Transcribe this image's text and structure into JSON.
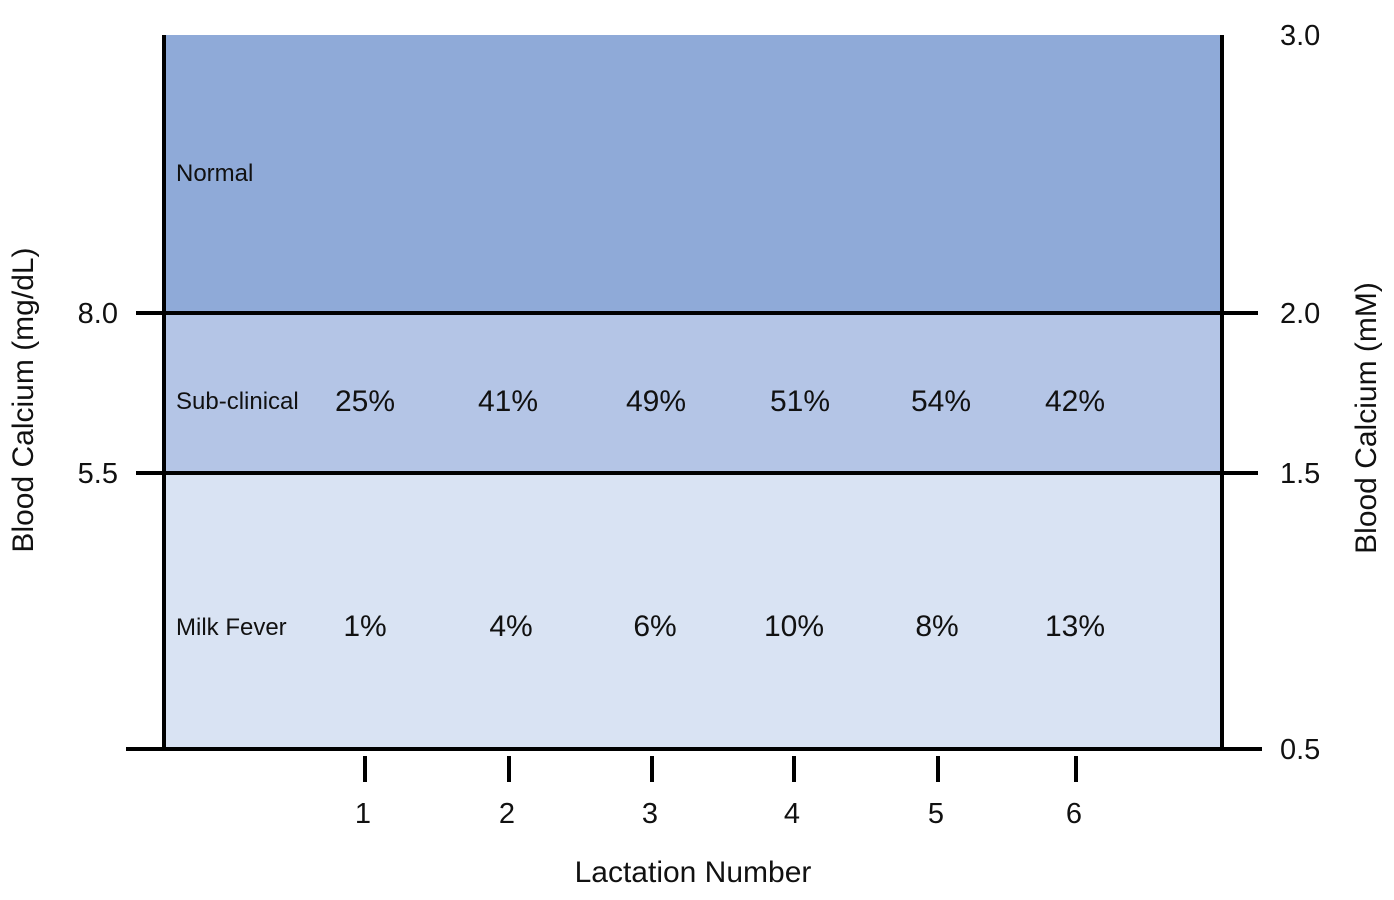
{
  "chart_data": {
    "type": "table",
    "xlabel": "Lactation Number",
    "ylabel_left": "Blood Calcium (mg/dL)",
    "ylabel_right": "Blood Calcium (mM)",
    "categories": [
      "1",
      "2",
      "3",
      "4",
      "5",
      "6"
    ],
    "left_ticks": [
      {
        "label": "8.0",
        "mm": 2.0
      },
      {
        "label": "5.5",
        "mm": 1.5
      }
    ],
    "right_ticks": [
      {
        "label": "3.0",
        "mm": 3.0
      },
      {
        "label": "2.0",
        "mm": 2.0
      },
      {
        "label": "1.5",
        "mm": 1.5
      },
      {
        "label": "0.5",
        "mm": 0.5
      }
    ],
    "y_range_mm": [
      0.5,
      3.0
    ],
    "zones": [
      {
        "label": "Normal",
        "from_mm": 2.0,
        "to_mm": 3.0,
        "color": "#8faad8"
      },
      {
        "label": "Sub-clinical",
        "from_mm": 1.5,
        "to_mm": 2.0,
        "color": "#b4c5e6"
      },
      {
        "label": "Milk Fever",
        "from_mm": 0.5,
        "to_mm": 1.5,
        "color": "#d9e3f3"
      }
    ],
    "series": [
      {
        "name": "Sub-clinical",
        "values": [
          25,
          41,
          49,
          51,
          54,
          42
        ],
        "labels": [
          "25%",
          "41%",
          "49%",
          "51%",
          "54%",
          "42%"
        ]
      },
      {
        "name": "Milk Fever",
        "values": [
          1,
          4,
          6,
          10,
          8,
          13
        ],
        "labels": [
          "1%",
          "4%",
          "6%",
          "10%",
          "8%",
          "13%"
        ]
      }
    ]
  }
}
